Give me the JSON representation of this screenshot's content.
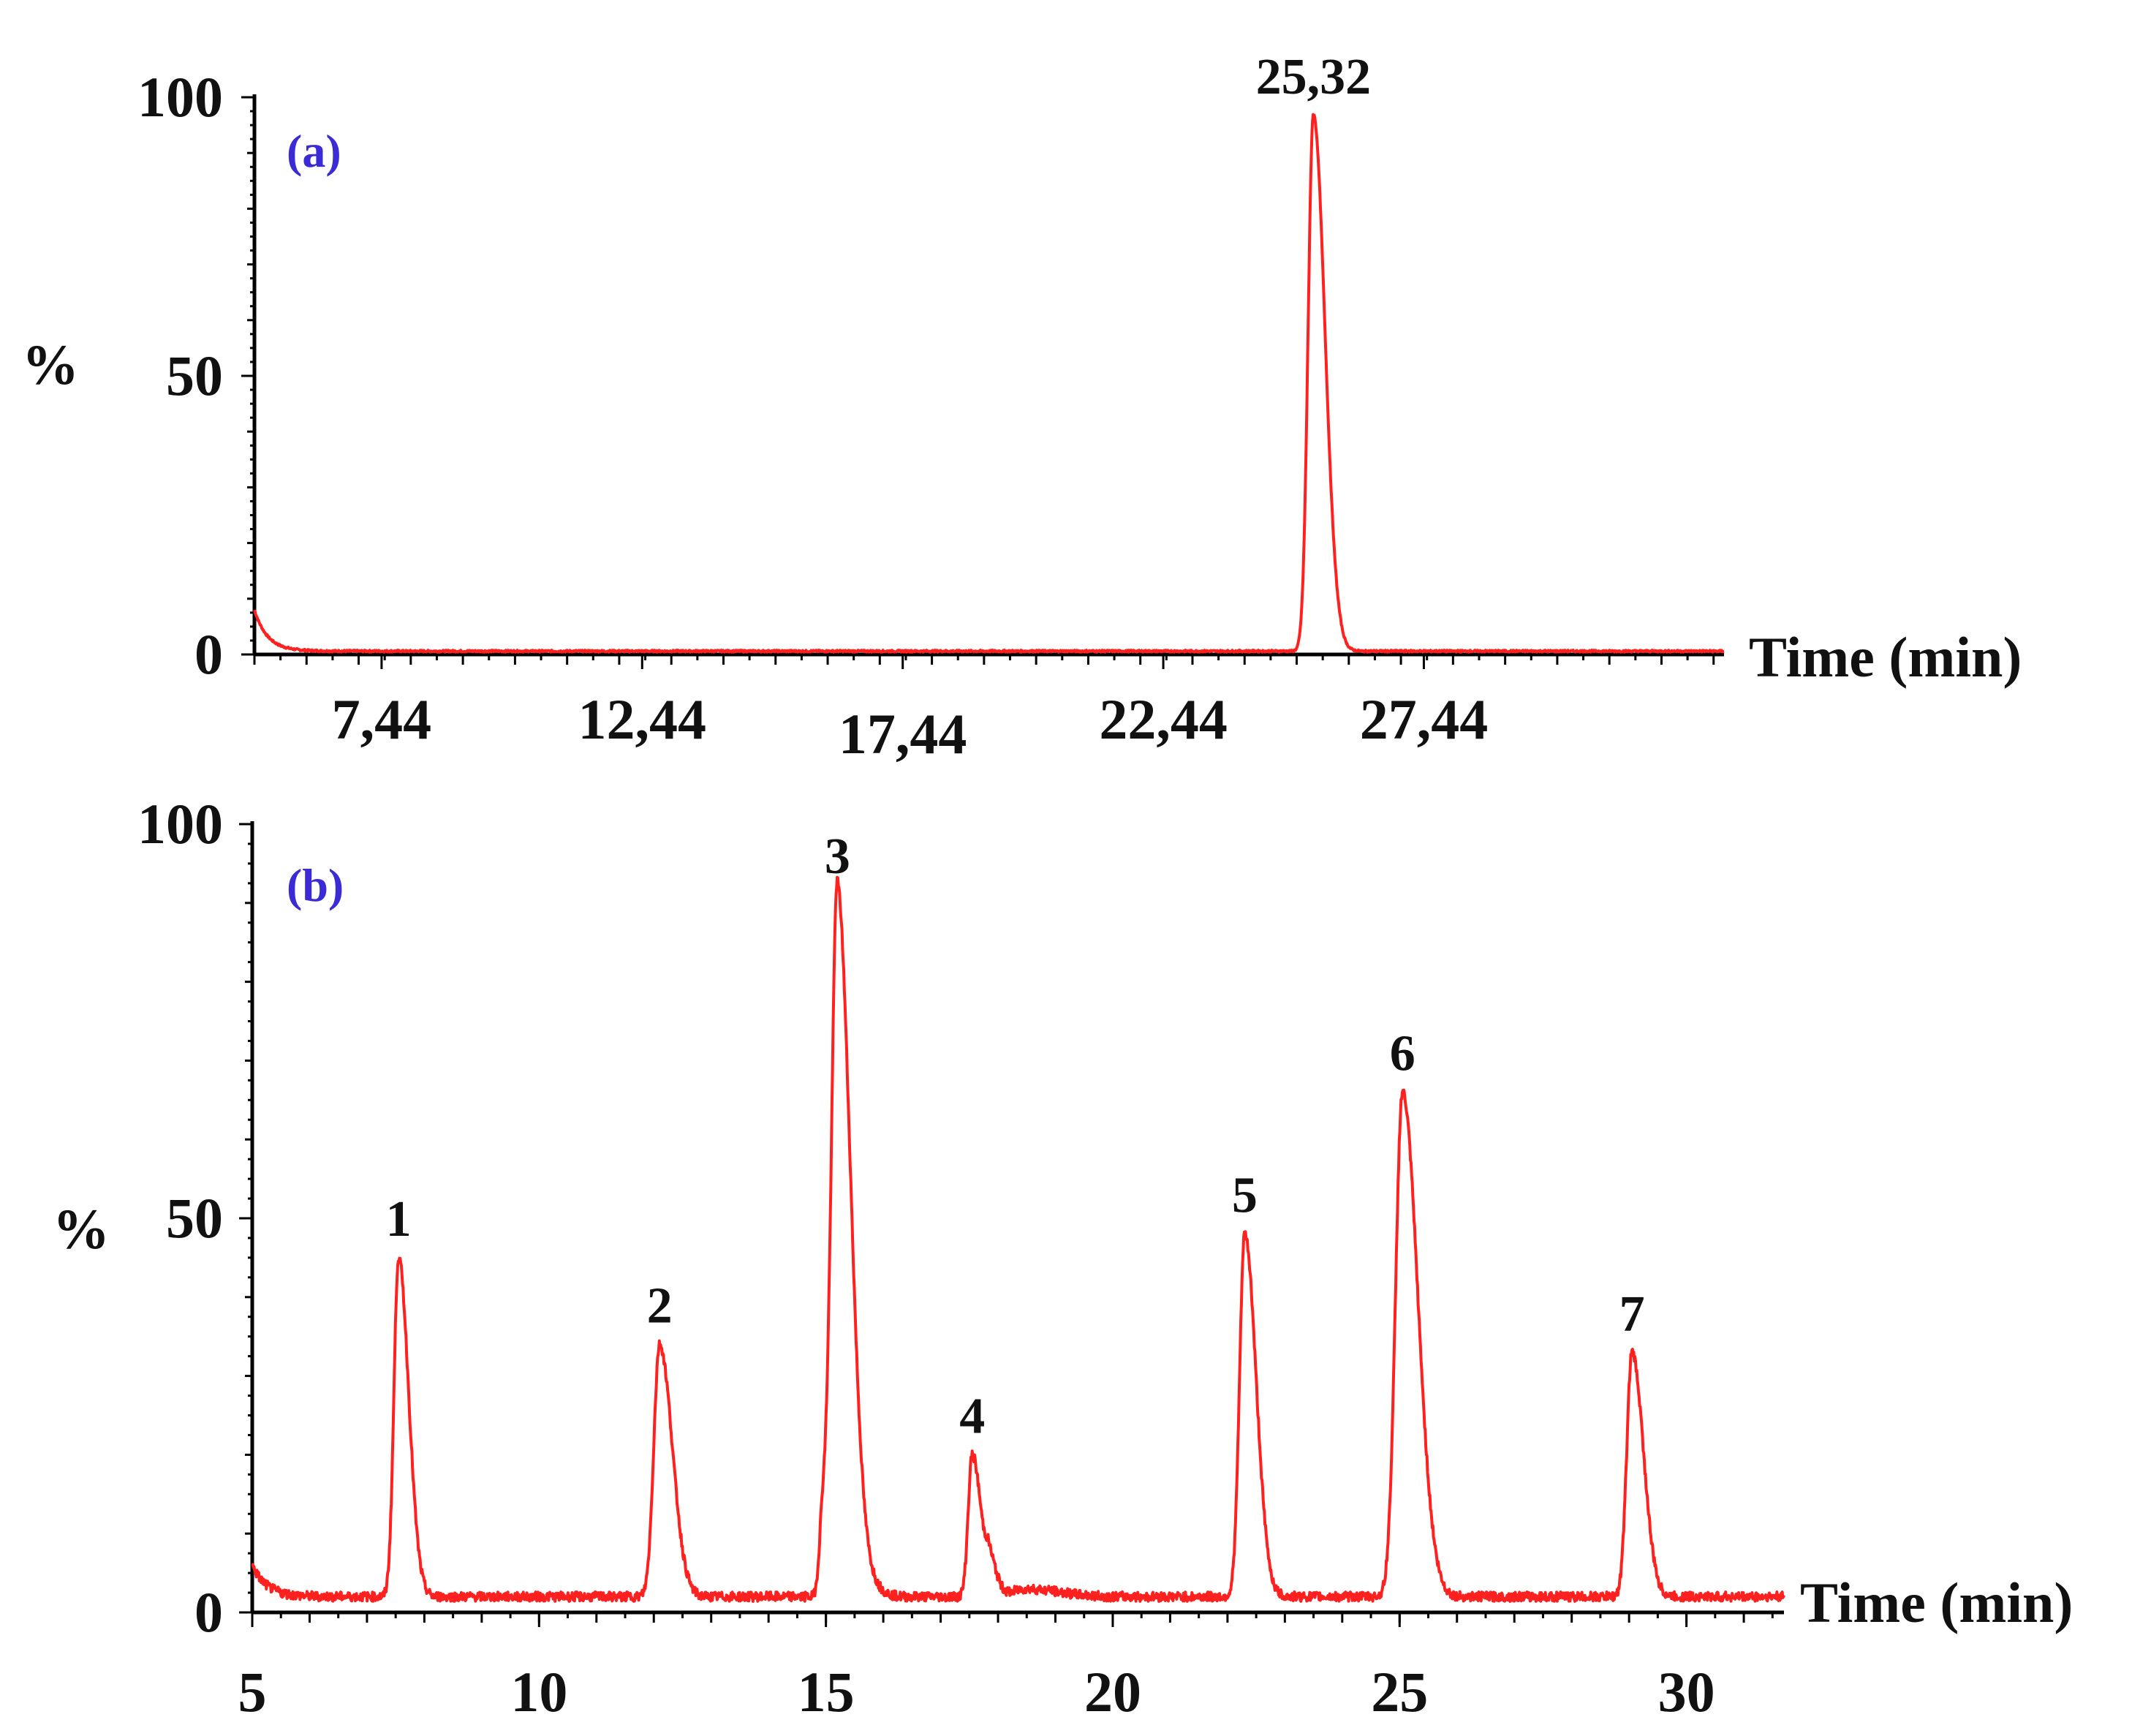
{
  "chart_data": [
    {
      "type": "line",
      "panel_label": "(a)",
      "xlabel": "Time (min)",
      "ylabel": "%",
      "xlim": [
        5.0,
        33.2
      ],
      "ylim": [
        0,
        100
      ],
      "x_ticks": [
        7.44,
        12.44,
        17.44,
        22.44,
        27.44
      ],
      "x_tick_labels": [
        "7,44",
        "12,44",
        "17,44",
        "22,44",
        "27,44"
      ],
      "y_ticks": [
        0,
        50,
        100
      ],
      "y_tick_labels": [
        "0",
        "50",
        "100"
      ],
      "series_color": "#ff2020",
      "baseline": 0.6,
      "start_value": 8,
      "peaks": [
        {
          "label": "25,32",
          "x": 25.32,
          "y": 97,
          "width": 0.1
        }
      ]
    },
    {
      "type": "line",
      "panel_label": "(b)",
      "xlabel": "Time (min)",
      "ylabel": "%",
      "xlim": [
        5.0,
        31.7
      ],
      "ylim": [
        0,
        100
      ],
      "x_ticks": [
        5,
        10,
        15,
        20,
        25,
        30
      ],
      "x_tick_labels": [
        "5",
        "10",
        "15",
        "20",
        "25",
        "30"
      ],
      "y_ticks": [
        0,
        50,
        100
      ],
      "y_tick_labels": [
        "0",
        "50",
        "100"
      ],
      "series_color": "#ff2020",
      "baseline": 2,
      "start_value": 6,
      "peaks": [
        {
          "label": "1",
          "x": 7.55,
          "y": 45,
          "width": 0.08
        },
        {
          "label": "2",
          "x": 12.1,
          "y": 34,
          "width": 0.1
        },
        {
          "label": "3",
          "x": 15.2,
          "y": 91,
          "width": 0.1
        },
        {
          "label": "4",
          "x": 17.55,
          "y": 20,
          "width": 0.07
        },
        {
          "label": "5",
          "x": 22.3,
          "y": 48,
          "width": 0.09
        },
        {
          "label": "6",
          "x": 25.05,
          "y": 66,
          "width": 0.12
        },
        {
          "label": "7",
          "x": 29.05,
          "y": 33,
          "width": 0.09
        }
      ],
      "minor_peaks": [
        {
          "x": 14.95,
          "y": 13,
          "width": 0.06
        },
        {
          "x": 15.55,
          "y": 5,
          "width": 0.12
        },
        {
          "x": 17.85,
          "y": 6,
          "width": 0.06
        },
        {
          "x": 18.5,
          "y": 3,
          "width": 0.25
        }
      ]
    }
  ]
}
